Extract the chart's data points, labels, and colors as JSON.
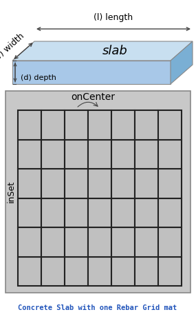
{
  "fig_width": 2.85,
  "fig_height": 4.66,
  "dpi": 100,
  "bg_color": "#ffffff",
  "slab_top_color": "#c8dff0",
  "slab_front_color": "#a8c8e8",
  "slab_right_color": "#7aafd4",
  "slab_edge_color": "#888888",
  "grid_bg_color": "#c8c8c8",
  "grid_cell_color": "#c0c0c0",
  "grid_line_color": "#222222",
  "grid_outer_edge": "#888888",
  "caption_color": "#2255bb",
  "caption_text": "Concrete Slab with one Rebar Grid mat",
  "label_length": "(l) length",
  "label_width": "(w) width",
  "label_slab": "slab",
  "label_depth": "(d) depth",
  "label_onCenter": "onCenter",
  "label_inSet": "inSet",
  "grid_cols": 7,
  "grid_rows": 6,
  "arrow_color": "#444444",
  "brace_color": "#444444"
}
